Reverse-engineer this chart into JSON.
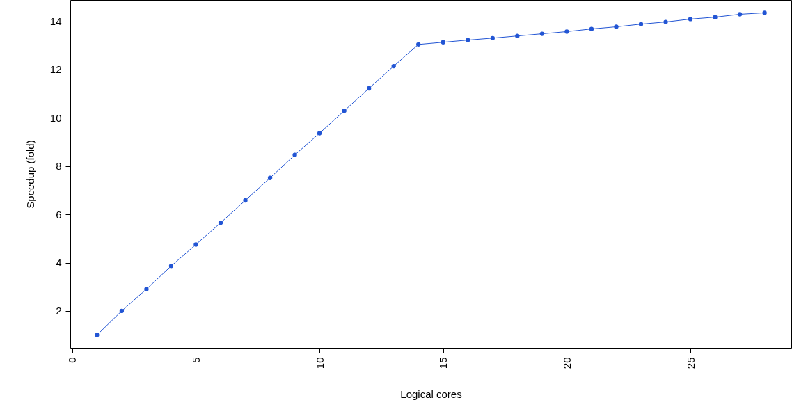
{
  "chart_data": {
    "type": "line",
    "xlabel": "Logical cores",
    "ylabel": "Speedup (fold)",
    "x": [
      1,
      2,
      3,
      4,
      5,
      6,
      7,
      8,
      9,
      10,
      11,
      12,
      13,
      14,
      15,
      16,
      17,
      18,
      19,
      20,
      21,
      22,
      23,
      24,
      25,
      26,
      27,
      28
    ],
    "series": [
      {
        "color": "#2255d4",
        "values": [
          1.0,
          2.0,
          2.9,
          3.86,
          4.75,
          5.65,
          6.58,
          7.51,
          8.46,
          9.36,
          10.29,
          11.22,
          12.14,
          13.04,
          13.13,
          13.22,
          13.3,
          13.39,
          13.48,
          13.57,
          13.68,
          13.77,
          13.88,
          13.97,
          14.09,
          14.17,
          14.29,
          14.35
        ]
      }
    ],
    "xlim": [
      -0.08,
      29.08
    ],
    "xticks": [
      0,
      5,
      10,
      15,
      20,
      25
    ],
    "ylim": [
      0.47,
      14.88
    ],
    "yticks": [
      2,
      4,
      6,
      8,
      10,
      12,
      14
    ],
    "grid": false,
    "marker": "circle",
    "line_style": "solid"
  }
}
